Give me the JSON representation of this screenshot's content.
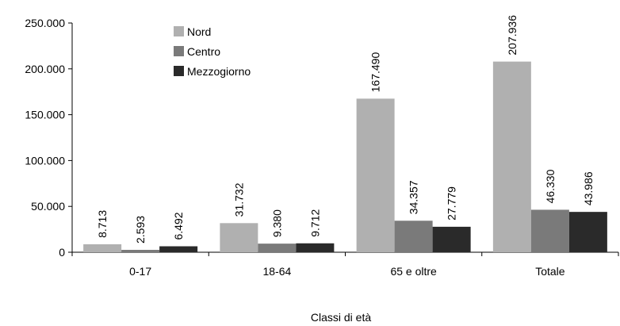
{
  "chart_data": {
    "type": "bar",
    "categories": [
      "0-17",
      "18-64",
      "65 e oltre",
      "Totale"
    ],
    "series": [
      {
        "name": "Nord",
        "values": [
          8713,
          31732,
          167490,
          207936
        ],
        "labels": [
          "8.713",
          "31.732",
          "167.490",
          "207.936"
        ],
        "color": "#b0b0b0"
      },
      {
        "name": "Centro",
        "values": [
          2593,
          9380,
          34357,
          46330
        ],
        "labels": [
          "2.593",
          "9.380",
          "34.357",
          "46.330"
        ],
        "color": "#7a7a7a"
      },
      {
        "name": "Mezzogiorno",
        "values": [
          6492,
          9712,
          27779,
          43986
        ],
        "labels": [
          "6.492",
          "9.712",
          "27.779",
          "43.986"
        ],
        "color": "#2a2a2a"
      }
    ],
    "xlabel": "Classi di età",
    "ylabel": "",
    "ylim": [
      0,
      250000
    ],
    "yticks": [
      0,
      50000,
      100000,
      150000,
      200000,
      250000
    ],
    "ytick_labels": [
      "0",
      "50.000",
      "100.000",
      "150.000",
      "200.000",
      "250.000"
    ],
    "legend": "top-left",
    "grid": false
  }
}
